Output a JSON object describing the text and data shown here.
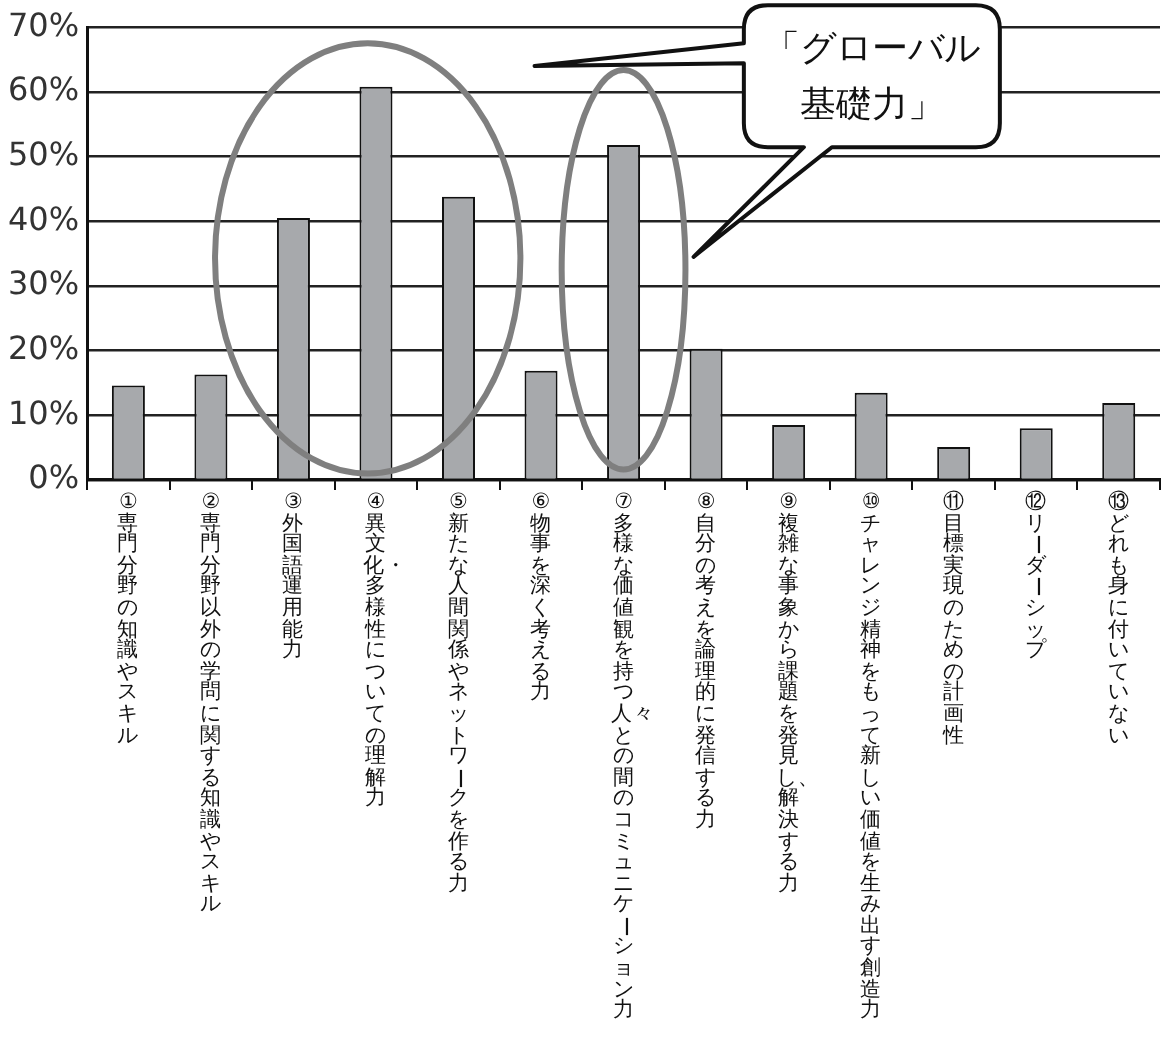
{
  "chart_data": {
    "type": "bar",
    "categories": [
      "①専門分野の知識やスキル",
      "②専門分野以外の学問に関する知識やスキル",
      "③外国語運用能力",
      "④異文化・多様性についての理解力",
      "⑤新たな人間関係やネットワークを作る力",
      "⑥物事を深く考える力",
      "⑦多様な価値観を持つ人々との間のコミュニケーション力",
      "⑧自分の考えを論理的に発信する力",
      "⑨複雑な事象から課題を発見し、解決する力",
      "⑩チャレンジ精神をもって新しい価値を生み出す創造力",
      "⑪目標実現のための計画性",
      "⑫リーダーシップ",
      "⑬どれも身に付いていない"
    ],
    "values": [
      14.6,
      16.3,
      40.5,
      60.8,
      43.8,
      16.9,
      51.8,
      20.3,
      8.5,
      13.5,
      5.1,
      8.0,
      11.9
    ],
    "color": "#a7a9ac",
    "ylim": [
      0,
      70
    ],
    "yticks": [
      {
        "value": 0,
        "label": "0%"
      },
      {
        "value": 10,
        "label": "10%"
      },
      {
        "value": 20,
        "label": "20%"
      },
      {
        "value": 30,
        "label": "30%"
      },
      {
        "value": 40,
        "label": "40%"
      },
      {
        "value": 50,
        "label": "50%"
      },
      {
        "value": 60,
        "label": "60%"
      },
      {
        "value": 70,
        "label": "70%"
      }
    ],
    "grid": "y",
    "annotations": [
      "「グローバル基礎力」"
    ]
  }
}
